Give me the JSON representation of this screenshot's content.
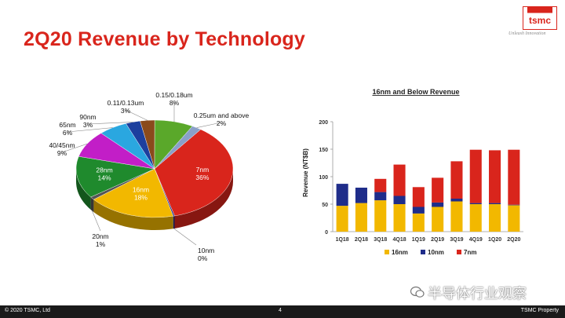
{
  "header": {
    "title": "2Q20 Revenue by Technology",
    "logo_text": "tsmc",
    "tagline": "Unleash Innovation"
  },
  "footer": {
    "copyright": "© 2020 TSMC, Ltd",
    "page": "4",
    "property": "TSMC Property"
  },
  "watermark": {
    "text": "半导体行业观察"
  },
  "colors": {
    "accent": "#d9251c",
    "n7": "#d9251c",
    "n10": "#1f2d8a",
    "n16": "#f2b800",
    "n20": "#555555",
    "n28": "#1f8a2d",
    "n40": "#c21ec7",
    "n65": "#2aa7e0",
    "n90": "#1c3f9e",
    "n110": "#8a4a1c",
    "n150": "#5aa82a",
    "n250": "#8aa0c8"
  },
  "chart_data": [
    {
      "type": "pie",
      "title": "",
      "slices": [
        {
          "key": "n7",
          "name": "7nm",
          "pct_label": "36%",
          "value": 36
        },
        {
          "key": "n10",
          "name": "10nm",
          "pct_label": "0%",
          "value": 0.3
        },
        {
          "key": "n16",
          "name": "16nm",
          "pct_label": "18%",
          "value": 18
        },
        {
          "key": "n20",
          "name": "20nm",
          "pct_label": "1%",
          "value": 1
        },
        {
          "key": "n28",
          "name": "28nm",
          "pct_label": "14%",
          "value": 14
        },
        {
          "key": "n40",
          "name": "40/45nm",
          "pct_label": "9%",
          "value": 9
        },
        {
          "key": "n65",
          "name": "65nm",
          "pct_label": "6%",
          "value": 6
        },
        {
          "key": "n90",
          "name": "90nm",
          "pct_label": "3%",
          "value": 3
        },
        {
          "key": "n110",
          "name": "0.11/0.13um",
          "pct_label": "3%",
          "value": 3
        },
        {
          "key": "n150",
          "name": "0.15/0.18um",
          "pct_label": "8%",
          "value": 8
        },
        {
          "key": "n250",
          "name": "0.25um and above",
          "pct_label": "2%",
          "value": 2
        }
      ]
    },
    {
      "type": "bar",
      "stacked": true,
      "title": "16nm and Below Revenue",
      "ylabel": "Revenue (NT$B)",
      "ylim": [
        0,
        200
      ],
      "yticks": [
        0,
        50,
        100,
        150,
        200
      ],
      "categories": [
        "1Q18",
        "2Q18",
        "3Q18",
        "4Q18",
        "1Q19",
        "2Q19",
        "3Q19",
        "4Q19",
        "1Q20",
        "2Q20"
      ],
      "series": [
        {
          "key": "n16",
          "name": "16nm",
          "values": [
            47,
            52,
            57,
            50,
            33,
            45,
            55,
            50,
            50,
            48
          ]
        },
        {
          "key": "n10",
          "name": "10nm",
          "values": [
            40,
            28,
            15,
            15,
            12,
            8,
            5,
            2,
            2,
            1
          ]
        },
        {
          "key": "n7",
          "name": "7nm",
          "values": [
            0,
            0,
            24,
            57,
            36,
            45,
            68,
            97,
            96,
            100
          ]
        }
      ],
      "legend": "bottom",
      "grid": false
    }
  ]
}
